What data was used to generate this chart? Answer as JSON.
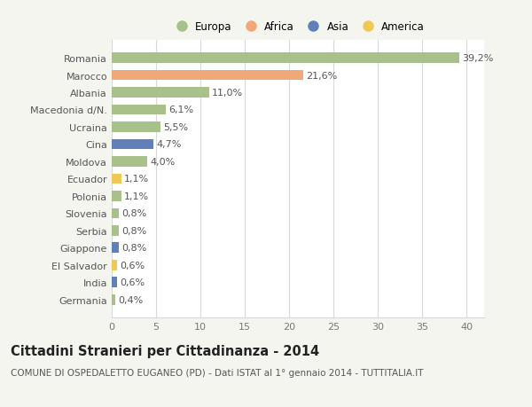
{
  "categories": [
    "Romania",
    "Marocco",
    "Albania",
    "Macedonia d/N.",
    "Ucraina",
    "Cina",
    "Moldova",
    "Ecuador",
    "Polonia",
    "Slovenia",
    "Serbia",
    "Giappone",
    "El Salvador",
    "India",
    "Germania"
  ],
  "values": [
    39.2,
    21.6,
    11.0,
    6.1,
    5.5,
    4.7,
    4.0,
    1.1,
    1.1,
    0.8,
    0.8,
    0.8,
    0.6,
    0.6,
    0.4
  ],
  "labels": [
    "39,2%",
    "21,6%",
    "11,0%",
    "6,1%",
    "5,5%",
    "4,7%",
    "4,0%",
    "1,1%",
    "1,1%",
    "0,8%",
    "0,8%",
    "0,8%",
    "0,6%",
    "0,6%",
    "0,4%"
  ],
  "colors": [
    "#a8c08a",
    "#f0a878",
    "#a8c08a",
    "#a8c08a",
    "#a8c08a",
    "#6080b8",
    "#a8c08a",
    "#f0c858",
    "#a8c08a",
    "#a8c08a",
    "#a8c08a",
    "#6080b8",
    "#f0c858",
    "#6080b8",
    "#a8c08a"
  ],
  "legend_labels": [
    "Europa",
    "Africa",
    "Asia",
    "America"
  ],
  "legend_colors": [
    "#a8c08a",
    "#f0a878",
    "#6080b8",
    "#f0c858"
  ],
  "title": "Cittadini Stranieri per Cittadinanza - 2014",
  "subtitle": "COMUNE DI OSPEDALETTO EUGANEO (PD) - Dati ISTAT al 1° gennaio 2014 - TUTTITALIA.IT",
  "xlim": [
    0,
    42
  ],
  "xticks": [
    0,
    5,
    10,
    15,
    20,
    25,
    30,
    35,
    40
  ],
  "background_color": "#f5f5f0",
  "plot_background": "#ffffff",
  "grid_color": "#d8d8d8",
  "bar_height": 0.6,
  "label_fontsize": 8,
  "tick_fontsize": 8,
  "title_fontsize": 10.5,
  "subtitle_fontsize": 7.5
}
